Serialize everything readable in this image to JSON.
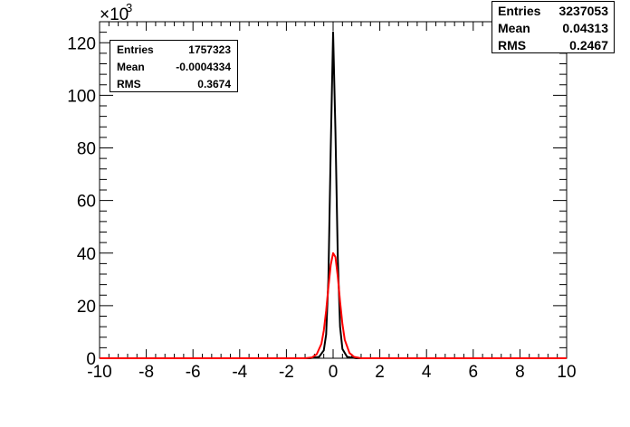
{
  "chart_data": {
    "type": "line",
    "title": "",
    "xlabel": "",
    "ylabel": "",
    "xlim": [
      -10,
      10
    ],
    "ylim": [
      0,
      128000
    ],
    "y_multiplier_label": "×10",
    "y_multiplier_exponent": "3",
    "x_ticks": [
      -10,
      -8,
      -6,
      -4,
      -2,
      0,
      2,
      4,
      6,
      8,
      10
    ],
    "y_ticks": [
      0,
      20,
      40,
      60,
      80,
      100,
      120
    ],
    "x_tick_labels": [
      "-10",
      "-8",
      "-6",
      "-4",
      "-2",
      "0",
      "2",
      "4",
      "6",
      "8",
      "10"
    ],
    "y_tick_labels": [
      "0",
      "20",
      "40",
      "60",
      "80",
      "100",
      "120"
    ],
    "grid": false,
    "series": [
      {
        "color": "#000000",
        "x": [
          -10,
          -1.0,
          -0.6,
          -0.4,
          -0.3,
          -0.2,
          -0.1,
          0.0,
          0.1,
          0.2,
          0.3,
          0.4,
          0.6,
          1.0,
          10
        ],
        "values": [
          0,
          0,
          500,
          3000,
          9000,
          30000,
          80000,
          124000,
          86000,
          38000,
          12000,
          3500,
          500,
          0,
          0
        ]
      },
      {
        "color": "#ff0000",
        "x": [
          -10,
          -1.2,
          -0.9,
          -0.7,
          -0.5,
          -0.4,
          -0.3,
          -0.2,
          -0.1,
          0.0,
          0.1,
          0.2,
          0.3,
          0.4,
          0.5,
          0.7,
          0.9,
          1.2,
          10
        ],
        "values": [
          0,
          0,
          300,
          1500,
          5500,
          10500,
          18000,
          27000,
          35500,
          40000,
          38500,
          31000,
          21500,
          13000,
          7000,
          2000,
          500,
          0,
          0
        ]
      }
    ],
    "stats_boxes": [
      {
        "series_color": "#000000",
        "rows": [
          {
            "label": "Entries",
            "value": "3237053"
          },
          {
            "label": "Mean",
            "value": "0.04313"
          },
          {
            "label": "RMS",
            "value": "0.2467"
          }
        ]
      },
      {
        "series_color": "#ff0000",
        "rows": [
          {
            "label": "Entries",
            "value": "1757323"
          },
          {
            "label": "Mean",
            "value": "-0.0004334"
          },
          {
            "label": "RMS",
            "value": "0.3674"
          }
        ]
      }
    ]
  }
}
